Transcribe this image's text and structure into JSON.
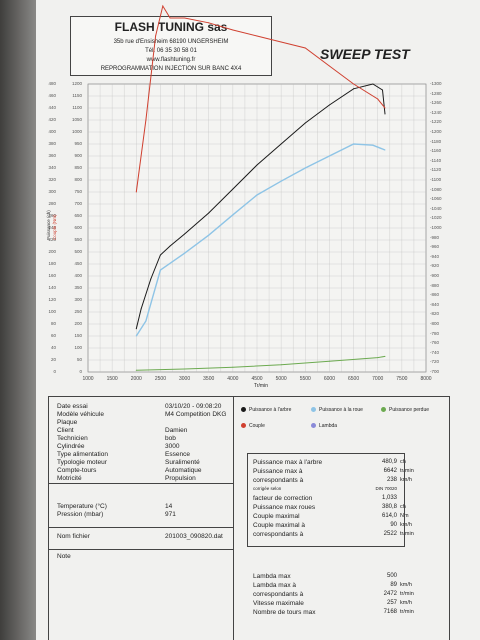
{
  "header": {
    "company": "FLASH TUNING sas",
    "address": "35b rue d'Ensisheim      68190 UNGERSHEIM",
    "phone": "Tél. 06 35 30 58 01",
    "website": "www.flashtuning.fr",
    "service": "REPROGRAMMATION INJECTION SUR BANC 4X4",
    "report_title": "SWEEP TEST"
  },
  "chart_data": {
    "type": "line",
    "xlabel": "Tr/min",
    "ylabel_left": "Puissance (ch)",
    "ylabel_left2": "Couple (Nm)",
    "x_ticks": [
      "1000",
      "1500",
      "2000",
      "2500",
      "3000",
      "3500",
      "4000",
      "4500",
      "5000",
      "5500",
      "6000",
      "6500",
      "7000",
      "7500",
      "8000"
    ],
    "xlim": [
      1000,
      8000
    ],
    "y_left_ticks": [
      "0",
      "20",
      "40",
      "60",
      "80",
      "100",
      "120",
      "140",
      "160",
      "180",
      "200",
      "220",
      "240",
      "260",
      "280",
      "300",
      "320",
      "340",
      "360",
      "380",
      "400",
      "420",
      "440",
      "460",
      "480"
    ],
    "y_left_torque_ticks": [
      "0",
      "50",
      "100",
      "150",
      "200",
      "250",
      "300",
      "350",
      "400",
      "450",
      "500",
      "550",
      "600",
      "650",
      "700",
      "750",
      "800",
      "850",
      "900",
      "950",
      "1000",
      "1050",
      "1100",
      "1150",
      "1200"
    ],
    "ylim": [
      0,
      480
    ],
    "y_right_ticks": [
      "-700",
      "-720",
      "-740",
      "-760",
      "-780",
      "-800",
      "-820",
      "-840",
      "-860",
      "-880",
      "-900",
      "-920",
      "-940",
      "-960",
      "-980",
      "-1000",
      "-1020",
      "-1040",
      "-1060",
      "-1080",
      "-1100",
      "-1120",
      "-1140",
      "-1160",
      "-1180",
      "-1200",
      "-1220",
      "-1240",
      "-1260",
      "-1280",
      "-1300"
    ],
    "grid": true,
    "series": [
      {
        "name": "Puissance à l'arbre",
        "color": "#1a1a1a",
        "x": [
          2000,
          2100,
          2300,
          2500,
          2700,
          3000,
          3500,
          4000,
          4500,
          5000,
          5500,
          6000,
          6500,
          6900,
          7100,
          7150
        ],
        "y": [
          72,
          105,
          155,
          195,
          210,
          230,
          265,
          305,
          345,
          380,
          415,
          445,
          472,
          480,
          470,
          430
        ]
      },
      {
        "name": "Puissance à la roue",
        "color": "#8ec4e6",
        "x": [
          2000,
          2200,
          2500,
          3000,
          3500,
          4000,
          4500,
          5000,
          5500,
          6000,
          6500,
          6900,
          7150
        ],
        "y": [
          60,
          85,
          170,
          198,
          228,
          262,
          295,
          318,
          340,
          360,
          380,
          378,
          370
        ]
      },
      {
        "name": "Couple",
        "color": "#d04030",
        "x": [
          2000,
          2200,
          2400,
          2550,
          2700,
          3000,
          3500,
          4000,
          4500,
          5000,
          5500,
          6000,
          6500,
          7000,
          7150
        ],
        "y": [
          300,
          420,
          560,
          610,
          590,
          590,
          582,
          570,
          560,
          550,
          540,
          510,
          480,
          455,
          440
        ]
      },
      {
        "name": "Puissance perdue",
        "color": "#6caa50",
        "x": [
          2000,
          3000,
          4000,
          5000,
          6000,
          7000,
          7150
        ],
        "y": [
          3,
          5,
          8,
          12,
          18,
          24,
          26
        ]
      }
    ]
  },
  "legend": [
    "Puissance à l'arbre",
    "Puissance à la roue",
    "Puissance perdue",
    "Couple",
    "Lambda"
  ],
  "info": [
    {
      "label": "Date essai",
      "value": "03/10/20 - 09:08:20"
    },
    {
      "label": "Modèle véhicule",
      "value": "M4 Competition DKG"
    },
    {
      "label": "Plaque",
      "value": ""
    },
    {
      "label": "Client",
      "value": "Damien"
    },
    {
      "label": "Technicien",
      "value": "bob"
    },
    {
      "label": "Cylindrée",
      "value": "3000"
    },
    {
      "label": "Type alimentation",
      "value": "Essence"
    },
    {
      "label": "Typologie moteur",
      "value": "Suralimenté"
    },
    {
      "label": "Compte-tours",
      "value": "Automatique"
    },
    {
      "label": "Motricité",
      "value": "Propulsion"
    },
    {
      "label": "Temperature (°C)",
      "value": "14"
    },
    {
      "label": "Pression (mbar)",
      "value": "971"
    },
    {
      "label": "Nom fichier",
      "value": "201003_090820.dat"
    },
    {
      "label": "Note",
      "value": ""
    }
  ],
  "results": [
    {
      "label": "Puissance max à l'arbre",
      "value": "480,9",
      "unit": "ch"
    },
    {
      "label": "Puissance max à",
      "value": "6642",
      "unit": "tr/min"
    },
    {
      "label": "correspondants à",
      "value": "238",
      "unit": "km/h"
    },
    {
      "label": "corrigée selon",
      "value": "DIN 70020",
      "unit": ""
    },
    {
      "label": "facteur de correction",
      "value": "1,033",
      "unit": ""
    },
    {
      "label": "Puissance max roues",
      "value": "380,8",
      "unit": "ch"
    },
    {
      "label": "Couple maximal",
      "value": "614,0",
      "unit": "Nm"
    },
    {
      "label": "Couple maximal à",
      "value": "90",
      "unit": "km/h"
    },
    {
      "label": "correspondants à",
      "value": "2522",
      "unit": "tr/min"
    }
  ],
  "lambda": [
    {
      "label": "Lambda max",
      "value": "500",
      "unit": ""
    },
    {
      "label": "Lambda max à",
      "value": "89",
      "unit": "km/h"
    },
    {
      "label": "correspondants à",
      "value": "2472",
      "unit": "tr/min"
    },
    {
      "label": "Vitesse maximale",
      "value": "257",
      "unit": "km/h"
    },
    {
      "label": "Nombre de tours max",
      "value": "7168",
      "unit": "tr/min"
    }
  ]
}
